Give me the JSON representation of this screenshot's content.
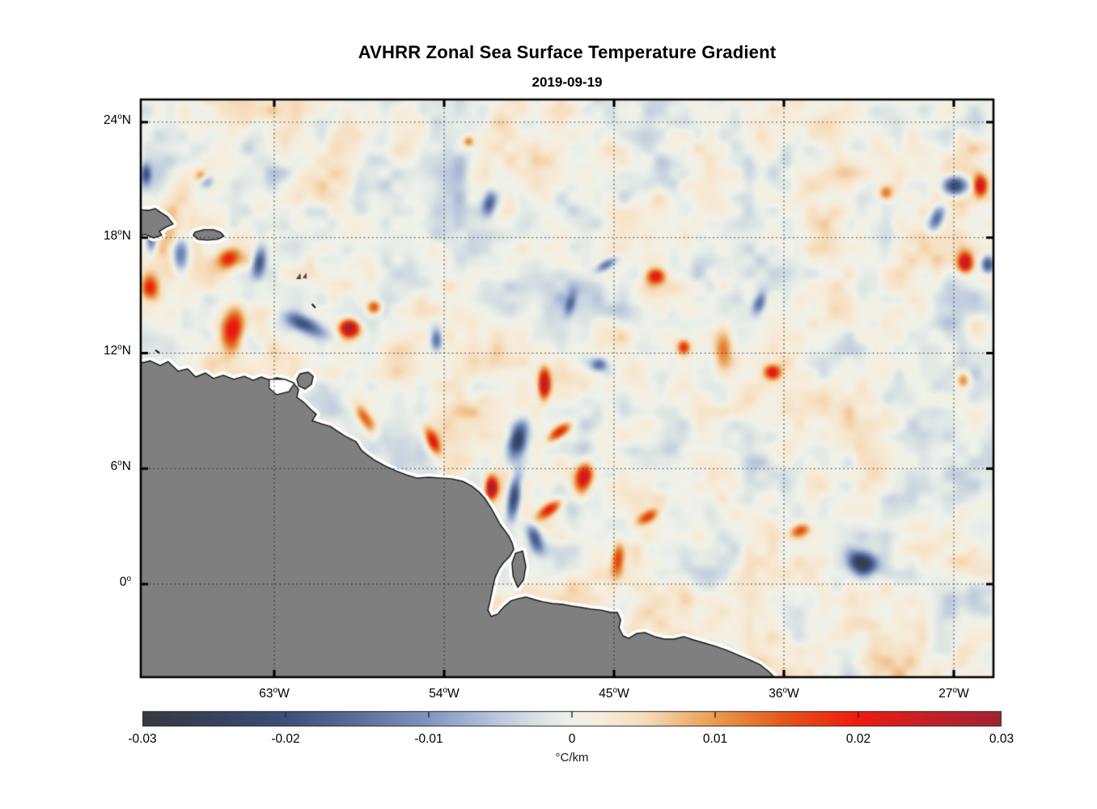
{
  "title": "AVHRR Zonal Sea Surface Temperature Gradient",
  "subtitle": "2019-09-19",
  "chart_data": {
    "type": "heatmap",
    "title": "AVHRR Zonal Sea Surface Temperature Gradient",
    "date": "2019-09-19",
    "lon_range_degE": [
      -70.1,
      -24.9
    ],
    "lat_range_degN": [
      -4.9,
      25.2
    ],
    "grid": "dotted",
    "x_ticks": [
      {
        "text": "63°W",
        "deg": "63",
        "hemi": "W",
        "lon": -63
      },
      {
        "text": "54°W",
        "deg": "54",
        "hemi": "W",
        "lon": -54
      },
      {
        "text": "45°W",
        "deg": "45",
        "hemi": "W",
        "lon": -45
      },
      {
        "text": "36°W",
        "deg": "36",
        "hemi": "W",
        "lon": -36
      },
      {
        "text": "27°W",
        "deg": "27",
        "hemi": "W",
        "lon": -27
      }
    ],
    "y_ticks": [
      {
        "text": "24°N",
        "deg": "24",
        "hemi": "N",
        "lat": 24
      },
      {
        "text": "18°N",
        "deg": "18",
        "hemi": "N",
        "lat": 18
      },
      {
        "text": "12°N",
        "deg": "12",
        "hemi": "N",
        "lat": 12
      },
      {
        "text": "6°N",
        "deg": "6",
        "hemi": "N",
        "lat": 6
      },
      {
        "text": "0°",
        "deg": "0",
        "hemi": "",
        "lat": 0
      }
    ],
    "colorbar": {
      "range": [
        -0.03,
        0.03
      ],
      "ticks": [
        -0.03,
        -0.02,
        -0.01,
        0,
        0.01,
        0.02,
        0.03
      ],
      "labels": [
        "-0.03",
        "-0.02",
        "-0.01",
        "0",
        "0.01",
        "0.02",
        "0.03"
      ],
      "unit": "°C/km",
      "stops": [
        [
          -0.03,
          "#36393E"
        ],
        [
          -0.025,
          "#37425C"
        ],
        [
          -0.02,
          "#3B4F78"
        ],
        [
          -0.015,
          "#5A6E99"
        ],
        [
          -0.01,
          "#8096C2"
        ],
        [
          -0.005,
          "#BCC9DD"
        ],
        [
          -0.002,
          "#DEE6E4"
        ],
        [
          0,
          "#EFF2EB"
        ],
        [
          0.002,
          "#F6EDDC"
        ],
        [
          0.005,
          "#F6DDBC"
        ],
        [
          0.01,
          "#E99C4E"
        ],
        [
          0.015,
          "#E4541A"
        ],
        [
          0.02,
          "#EF1A10"
        ],
        [
          0.025,
          "#C52028"
        ],
        [
          0.03,
          "#A12433"
        ]
      ]
    },
    "field": {
      "description": "Noisy zonal SST gradient field over tropical Atlantic; mostly pale (|g|<0.006) with mesoscale positive (orange/red) and negative (blue/navy) filaments",
      "feature_format": [
        "lon",
        "lat",
        "rx_px",
        "ry_px",
        "rot_deg",
        "amp_C_per_km"
      ],
      "features": [
        [
          -69.6,
          15.4,
          10,
          14,
          0,
          0.018
        ],
        [
          -65.4,
          16.9,
          14,
          11,
          -20,
          0.02
        ],
        [
          -65.2,
          13.2,
          13,
          24,
          10,
          0.022
        ],
        [
          -59.0,
          13.3,
          12,
          10,
          0,
          0.031
        ],
        [
          -61.4,
          13.5,
          24,
          9,
          25,
          -0.018
        ],
        [
          -63.8,
          16.7,
          8,
          17,
          10,
          -0.02
        ],
        [
          -68.0,
          17.1,
          10,
          20,
          0,
          -0.016
        ],
        [
          -69.5,
          18.0,
          7,
          18,
          0,
          -0.02
        ],
        [
          -57.7,
          14.4,
          9,
          8,
          0,
          0.015
        ],
        [
          -58.2,
          8.6,
          8,
          18,
          -30,
          0.014
        ],
        [
          -54.6,
          7.4,
          7,
          16,
          -25,
          0.019
        ],
        [
          -51.5,
          5.0,
          7,
          13,
          0,
          0.032
        ],
        [
          -50.1,
          7.5,
          10,
          19,
          15,
          -0.026
        ],
        [
          -50.3,
          4.5,
          8,
          28,
          8,
          -0.026
        ],
        [
          -49.2,
          2.4,
          8,
          16,
          -20,
          -0.02
        ],
        [
          -47.9,
          7.9,
          17,
          7,
          -35,
          0.02
        ],
        [
          -46.6,
          5.5,
          10,
          20,
          10,
          0.024
        ],
        [
          -48.4,
          3.9,
          18,
          7,
          -35,
          0.019
        ],
        [
          -48.7,
          10.4,
          7,
          18,
          0,
          0.026
        ],
        [
          -45.8,
          11.4,
          10,
          8,
          0,
          -0.016
        ],
        [
          -42.8,
          16.0,
          11,
          9,
          0,
          0.021
        ],
        [
          -45.4,
          16.6,
          14,
          6,
          -30,
          -0.016
        ],
        [
          -41.3,
          12.3,
          8,
          9,
          0,
          0.02
        ],
        [
          -39.2,
          12.3,
          12,
          26,
          0,
          0.012
        ],
        [
          -36.6,
          11.0,
          10,
          9,
          0,
          0.023
        ],
        [
          -37.3,
          14.6,
          7,
          14,
          20,
          -0.015
        ],
        [
          -26.9,
          20.7,
          15,
          12,
          0,
          -0.028
        ],
        [
          -25.6,
          20.7,
          8,
          12,
          0,
          0.024
        ],
        [
          -27.9,
          19.0,
          8,
          16,
          25,
          -0.016
        ],
        [
          -26.4,
          16.7,
          9,
          12,
          0,
          0.026
        ],
        [
          -25.2,
          16.6,
          8,
          11,
          0,
          -0.024
        ],
        [
          -31.9,
          1.1,
          17,
          13,
          30,
          -0.028
        ],
        [
          -35.1,
          2.8,
          14,
          8,
          -20,
          0.015
        ],
        [
          -51.6,
          19.8,
          8,
          14,
          10,
          -0.017
        ],
        [
          -52.7,
          23.0,
          7,
          7,
          0,
          0.013
        ],
        [
          -54.4,
          12.7,
          7,
          13,
          0,
          -0.015
        ],
        [
          -47.3,
          14.6,
          6,
          14,
          15,
          -0.013
        ],
        [
          -44.8,
          1.3,
          8,
          20,
          5,
          0.017
        ],
        [
          -43.2,
          3.5,
          15,
          7,
          -30,
          0.015
        ],
        [
          -30.6,
          20.3,
          9,
          9,
          0,
          0.013
        ],
        [
          -69.8,
          21.3,
          6,
          12,
          0,
          -0.017
        ],
        [
          -66.9,
          21.2,
          8,
          8,
          0,
          0.012
        ],
        [
          -66.6,
          20.9,
          10,
          9,
          0,
          -0.012
        ],
        [
          -26.5,
          10.6,
          9,
          10,
          0,
          0.013
        ],
        [
          -58.8,
          5.8,
          7,
          12,
          20,
          -0.014
        ]
      ]
    },
    "land": {
      "color": "#7F7F7F",
      "coast": [
        [
          -70.3,
          11.43
        ],
        [
          -69.56,
          11.6
        ],
        [
          -69.04,
          11.35
        ],
        [
          -68.62,
          11.56
        ],
        [
          -68.1,
          11.06
        ],
        [
          -67.59,
          11.18
        ],
        [
          -67.16,
          10.76
        ],
        [
          -66.64,
          10.97
        ],
        [
          -66.22,
          10.68
        ],
        [
          -65.7,
          10.85
        ],
        [
          -65.14,
          10.64
        ],
        [
          -64.59,
          10.8
        ],
        [
          -64.11,
          10.59
        ],
        [
          -63.69,
          10.76
        ],
        [
          -63.21,
          10.59
        ],
        [
          -62.87,
          10.72
        ],
        [
          -62.44,
          10.64
        ],
        [
          -62.01,
          10.47
        ],
        [
          -61.71,
          10.13
        ],
        [
          -61.8,
          9.71
        ],
        [
          -61.41,
          9.42
        ],
        [
          -61.07,
          9.08
        ],
        [
          -60.77,
          8.83
        ],
        [
          -60.99,
          8.49
        ],
        [
          -60.47,
          8.32
        ],
        [
          -60.04,
          8.2
        ],
        [
          -59.66,
          7.95
        ],
        [
          -59.18,
          7.65
        ],
        [
          -58.67,
          7.4
        ],
        [
          -58.37,
          6.94
        ],
        [
          -58.03,
          6.68
        ],
        [
          -57.6,
          6.39
        ],
        [
          -57.13,
          6.14
        ],
        [
          -56.57,
          5.89
        ],
        [
          -56.01,
          5.68
        ],
        [
          -55.45,
          5.51
        ],
        [
          -54.81,
          5.55
        ],
        [
          -54.21,
          5.51
        ],
        [
          -53.61,
          5.47
        ],
        [
          -53.01,
          5.34
        ],
        [
          -52.54,
          5.09
        ],
        [
          -52.15,
          4.79
        ],
        [
          -51.81,
          4.41
        ],
        [
          -51.51,
          3.95
        ],
        [
          -51.25,
          3.49
        ],
        [
          -51.04,
          3.11
        ],
        [
          -50.78,
          2.77
        ],
        [
          -50.57,
          2.48
        ],
        [
          -50.4,
          2.14
        ],
        [
          -50.31,
          1.81
        ],
        [
          -50.53,
          1.43
        ],
        [
          -50.83,
          1.14
        ],
        [
          -51.08,
          0.8
        ],
        [
          -51.3,
          0.34
        ],
        [
          -51.43,
          -0.21
        ],
        [
          -51.55,
          -0.8
        ],
        [
          -51.68,
          -1.35
        ],
        [
          -51.51,
          -1.68
        ],
        [
          -51.17,
          -1.56
        ],
        [
          -50.83,
          -1.18
        ],
        [
          -50.48,
          -0.88
        ],
        [
          -50.1,
          -0.76
        ],
        [
          -49.67,
          -0.67
        ],
        [
          -49.24,
          -0.8
        ],
        [
          -48.77,
          -0.92
        ],
        [
          -48.25,
          -1.01
        ],
        [
          -47.74,
          -1.05
        ],
        [
          -47.22,
          -1.14
        ],
        [
          -46.71,
          -1.22
        ],
        [
          -46.2,
          -1.3
        ],
        [
          -45.68,
          -1.35
        ],
        [
          -45.17,
          -1.47
        ],
        [
          -44.82,
          -1.47
        ],
        [
          -44.65,
          -1.85
        ],
        [
          -44.74,
          -2.27
        ],
        [
          -44.52,
          -2.69
        ],
        [
          -44.22,
          -2.82
        ],
        [
          -43.79,
          -2.56
        ],
        [
          -43.36,
          -2.52
        ],
        [
          -42.85,
          -2.73
        ],
        [
          -42.34,
          -2.86
        ],
        [
          -41.82,
          -2.86
        ],
        [
          -41.31,
          -2.73
        ],
        [
          -40.79,
          -2.9
        ],
        [
          -40.19,
          -3.07
        ],
        [
          -39.59,
          -3.24
        ],
        [
          -38.99,
          -3.45
        ],
        [
          -38.39,
          -3.7
        ],
        [
          -37.79,
          -3.95
        ],
        [
          -37.24,
          -4.2
        ],
        [
          -36.81,
          -4.54
        ],
        [
          -36.46,
          -4.88
        ],
        [
          -36.2,
          -5.4
        ],
        [
          -70.3,
          -5.4
        ]
      ],
      "hispaniola": [
        [
          -70.3,
          19.46
        ],
        [
          -69.64,
          19.42
        ],
        [
          -69.3,
          19.51
        ],
        [
          -69.0,
          19.3
        ],
        [
          -68.66,
          19.09
        ],
        [
          -68.36,
          18.71
        ],
        [
          -68.74,
          18.54
        ],
        [
          -69.09,
          18.33
        ],
        [
          -68.96,
          18.12
        ],
        [
          -69.39,
          17.99
        ],
        [
          -69.82,
          18.16
        ],
        [
          -70.3,
          18.08
        ]
      ],
      "puerto_rico": [
        [
          -67.2,
          18.29
        ],
        [
          -66.73,
          18.41
        ],
        [
          -66.22,
          18.41
        ],
        [
          -65.87,
          18.29
        ],
        [
          -65.66,
          18.08
        ],
        [
          -66.0,
          17.91
        ],
        [
          -66.56,
          17.87
        ],
        [
          -67.03,
          17.91
        ],
        [
          -67.29,
          18.12
        ]
      ],
      "trinidad": [
        [
          -61.63,
          10.93
        ],
        [
          -61.2,
          11.01
        ],
        [
          -60.94,
          10.8
        ],
        [
          -61.03,
          10.38
        ],
        [
          -61.37,
          10.13
        ],
        [
          -61.71,
          10.3
        ],
        [
          -61.8,
          10.64
        ]
      ],
      "peninsula": [
        [
          -50.22,
          1.6
        ],
        [
          -49.84,
          1.72
        ],
        [
          -49.67,
          0.92
        ],
        [
          -49.8,
          0.21
        ],
        [
          -50.1,
          -0.17
        ],
        [
          -50.35,
          0.42
        ],
        [
          -50.4,
          1.09
        ]
      ],
      "gulf_notch": [
        [
          -63.26,
          10.64
        ],
        [
          -62.44,
          10.64
        ],
        [
          -61.93,
          10.43
        ],
        [
          -62.23,
          10.0
        ],
        [
          -62.87,
          9.84
        ],
        [
          -63.26,
          10.17
        ]
      ],
      "tiny_islands": [
        [
          [
            -61.85,
            15.85
          ],
          [
            -61.62,
            16.15
          ],
          [
            -61.58,
            15.85
          ]
        ],
        [
          [
            -61.5,
            15.9
          ],
          [
            -61.3,
            16.18
          ],
          [
            -61.28,
            15.88
          ]
        ]
      ],
      "coast_dashes": [
        [
          [
            -61.0,
            14.55
          ],
          [
            -60.82,
            14.35
          ]
        ],
        [
          [
            -69.3,
            12.15
          ],
          [
            -69.07,
            12.0
          ]
        ]
      ]
    }
  }
}
